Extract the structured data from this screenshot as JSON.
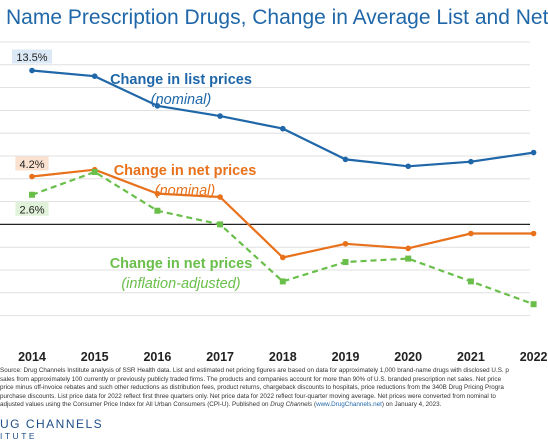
{
  "title": "Name Prescription Drugs, Change in Average List and Net",
  "chart_data": {
    "type": "line",
    "x": [
      "2014",
      "2015",
      "2016",
      "2017",
      "2018",
      "2019",
      "2020",
      "2021",
      "2022"
    ],
    "series": [
      {
        "name": "Change in list prices",
        "note": "(nominal)",
        "color": "#1f67a8",
        "style": "solid",
        "values": [
          13.5,
          13.0,
          10.4,
          9.5,
          8.4,
          5.7,
          5.1,
          5.5,
          6.3
        ]
      },
      {
        "name": "Change in net prices",
        "note": "(nominal)",
        "color": "#e8711c",
        "style": "solid",
        "values": [
          4.2,
          4.8,
          2.7,
          2.4,
          -2.9,
          -1.7,
          -2.1,
          -0.8,
          -0.8
        ]
      },
      {
        "name": "Change in net prices",
        "note": "(inflation-adjusted)",
        "color": "#6abf4b",
        "style": "dashed",
        "values": [
          2.6,
          4.6,
          1.2,
          0.0,
          -5.0,
          -3.3,
          -3.0,
          -5.0,
          -7.0
        ]
      }
    ],
    "point_labels": [
      {
        "series": 0,
        "index": 0,
        "text": "13.5%",
        "bg": "#dbe9f6"
      },
      {
        "series": 1,
        "index": 0,
        "text": "4.2%",
        "bg": "#fbe1d0"
      },
      {
        "series": 2,
        "index": 0,
        "text": "2.6%",
        "bg": "#e1f2da"
      }
    ],
    "ylim": [
      -9,
      16
    ],
    "grid": true,
    "xlabel": "",
    "ylabel": ""
  },
  "footnote": {
    "line1": "Source: Drug Channels Institute analysis of SSR Health data. List and estimated net pricing figures are based on data for approximately 1,000 brand-name drugs with disclosed U.S. p",
    "line2": "sales from approximately 100 currently or previously publicly traded firms. The products and companies account for more than 90% of U.S. branded prescription net sales. Net price",
    "line3": "price minus off-invoice rebates and such other reductions as distribution fees, product returns, chargeback discounts to hospitals, price reductions from the 340B Drug Pricing Progra",
    "line4": "purchase discounts. List price data for 2022 reflect first three quarters only. Net price data for 2022 reflect four-quarter moving average. Net prices were converted from nominal to",
    "line5a": "adjusted values using the Consumer Price Index for All Urban Consumers (CPI-U). Published on ",
    "line5b": "Drug Channels",
    "line5c": " (",
    "line5d": "www.DrugChannels.net",
    "line5e": ") on January 4, 2023."
  },
  "logo": {
    "name": "UG CHANNELS",
    "sub": "ITUTE"
  }
}
